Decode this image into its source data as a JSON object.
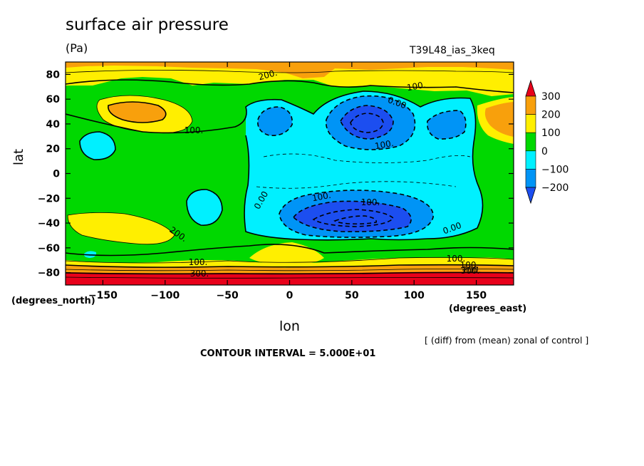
{
  "chart_data": {
    "type": "heatmap",
    "title": "surface air pressure",
    "units": "(Pa)",
    "run_label": "T39L48_ias_3keq",
    "xlabel": "lon",
    "ylabel": "lat",
    "x_units": "(degrees_east)",
    "y_units": "(degrees_north)",
    "xlim": [
      -180,
      180
    ],
    "ylim": [
      -90,
      90
    ],
    "x_ticks": [
      -150,
      -100,
      -50,
      0,
      50,
      100,
      150
    ],
    "x_tick_labels": [
      "−150",
      "−100",
      "−50",
      "0",
      "50",
      "100",
      "150"
    ],
    "y_ticks": [
      80,
      60,
      40,
      20,
      0,
      -20,
      -40,
      -60,
      -80
    ],
    "y_tick_labels": [
      "80",
      "60",
      "40",
      "20",
      "0",
      "−20",
      "−40",
      "−60",
      "−80"
    ],
    "colorbar": {
      "levels": [
        300,
        200,
        100,
        0,
        -100,
        -200
      ],
      "labels": [
        "300",
        "200",
        "100",
        "0",
        "−100",
        "−200"
      ],
      "colors": [
        "#e8001a",
        "#f8a00c",
        "#ffef00",
        "#00d800",
        "#00f0ff",
        "#0094f6",
        "#1c4ef0"
      ]
    },
    "contour_labels": [
      "200.",
      "100.",
      "0.00",
      "100.",
      "100.",
      "100.",
      "0.00",
      "100.",
      "200.",
      "0.00",
      "100.",
      "100.",
      "300.",
      "100.",
      "200.",
      "300."
    ],
    "subtitle": "[ (diff) from (mean) zonal of control ]",
    "contour_interval": "CONTOUR INTERVAL = 5.000E+01"
  }
}
